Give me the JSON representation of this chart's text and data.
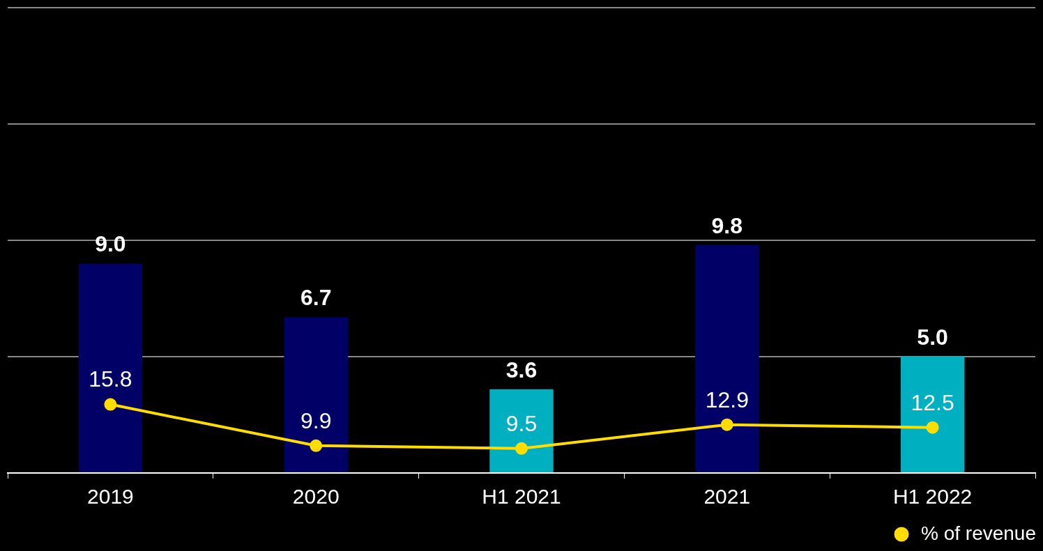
{
  "chart_data": {
    "type": "bar",
    "categories": [
      "2019",
      "2020",
      "H1 2021",
      "2021",
      "H1 2022"
    ],
    "series": [
      {
        "colors": [
          "#000066",
          "#000066",
          "#00b0c0",
          "#000066",
          "#00b0c0"
        ],
        "values": [
          9.0,
          6.7,
          3.6,
          9.8,
          5.0
        ],
        "value_labels": [
          "9.0",
          "6.7",
          "3.6",
          "9.8",
          "5.0"
        ]
      },
      {
        "type": "line",
        "name": "% of revenue",
        "color": "#ffdd00",
        "axis": "y2",
        "values": [
          15.8,
          9.9,
          9.5,
          12.9,
          12.5
        ],
        "value_labels": [
          "15.8",
          "9.9",
          "9.5",
          "12.9",
          "12.5"
        ]
      }
    ],
    "ylim": [
      0,
      20
    ],
    "yticks": [
      {
        "value": 0,
        "label": null
      },
      {
        "value": 5,
        "label": null
      },
      {
        "value": 10,
        "label": null
      },
      {
        "value": 15,
        "label": null
      },
      {
        "value": 20,
        "label": null
      }
    ],
    "y2lim": [
      6,
      72.5
    ],
    "tick_labels": "x",
    "grid": "y",
    "legend": "bottom right",
    "marker": "circle"
  }
}
